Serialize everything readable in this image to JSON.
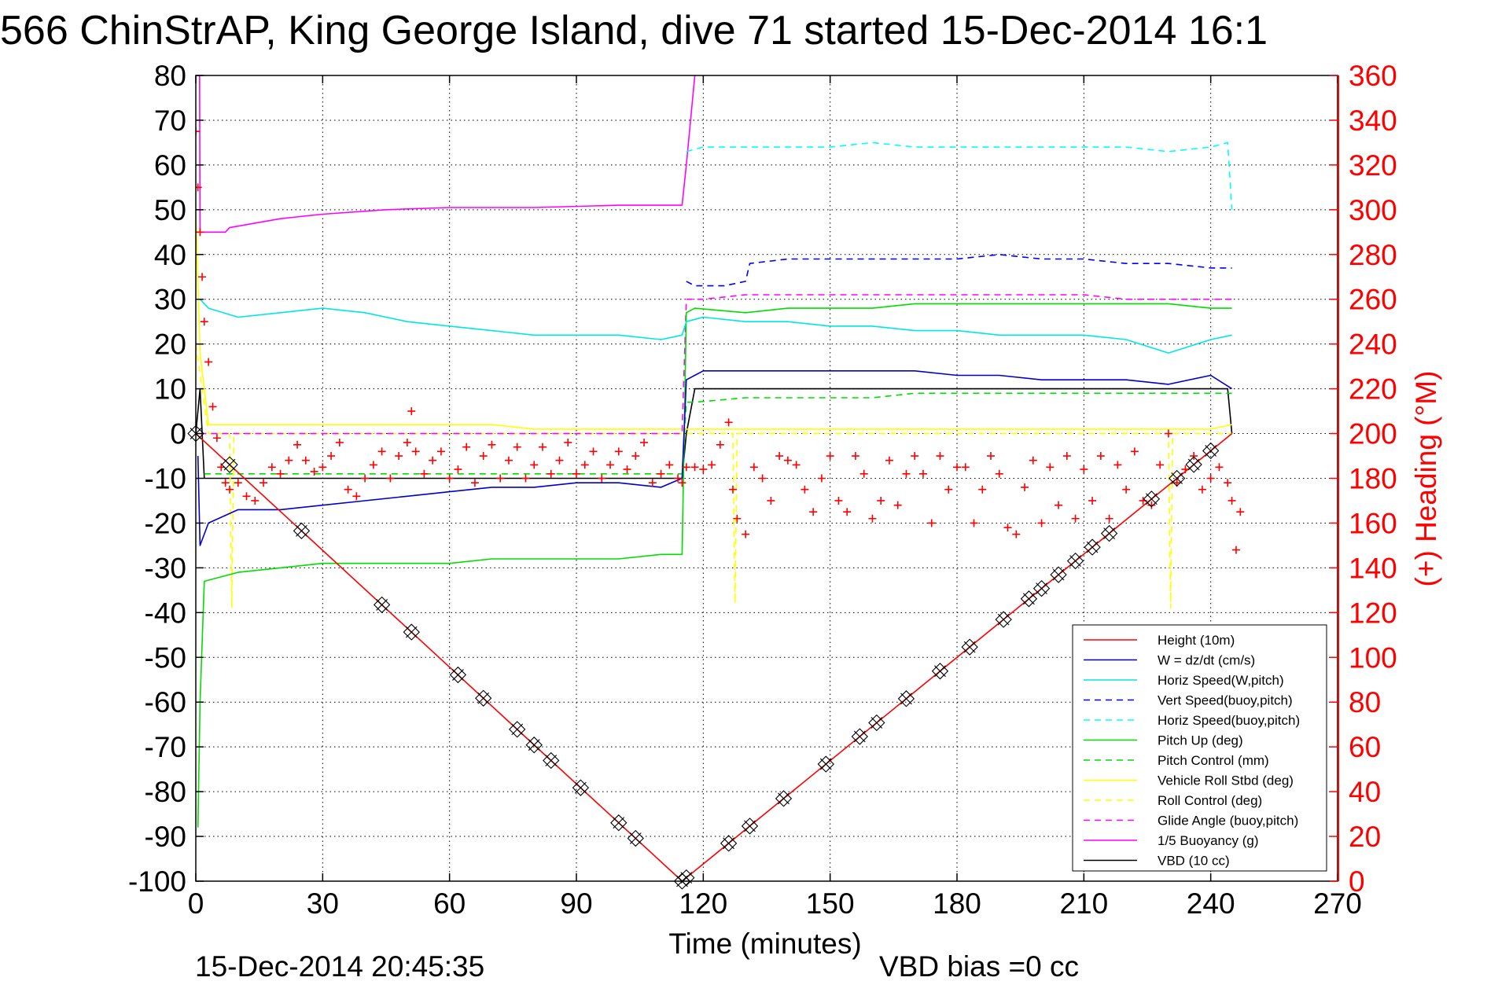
{
  "chart_data": {
    "type": "line",
    "title": "566 ChinStrAP, King George Island, dive 71 started 15-Dec-2014 16:1",
    "xlabel": "Time (minutes)",
    "ylabel_right": "(+) Heading (°M)",
    "footer_left": "15-Dec-2014 20:45:35",
    "footer_right": "VBD bias =0 cc",
    "xlim": [
      0,
      270
    ],
    "ylim": [
      -100,
      80
    ],
    "ylim_right": [
      0,
      360
    ],
    "x_ticks": [
      "0",
      "30",
      "60",
      "90",
      "120",
      "150",
      "180",
      "210",
      "240",
      "270"
    ],
    "x_tick_values": [
      0,
      30,
      60,
      90,
      120,
      150,
      180,
      210,
      240,
      270
    ],
    "y_ticks": [
      "80",
      "70",
      "60",
      "50",
      "40",
      "30",
      "20",
      "10",
      "0",
      "-10",
      "-20",
      "-30",
      "-40",
      "-50",
      "-60",
      "-70",
      "-80",
      "-90",
      "-100"
    ],
    "y_tick_values": [
      80,
      70,
      60,
      50,
      40,
      30,
      20,
      10,
      0,
      -10,
      -20,
      -30,
      -40,
      -50,
      -60,
      -70,
      -80,
      -90,
      -100
    ],
    "y_ticks_right": [
      "360",
      "340",
      "320",
      "300",
      "280",
      "260",
      "240",
      "220",
      "200",
      "180",
      "160",
      "140",
      "120",
      "100",
      "80",
      "60",
      "40",
      "20",
      "0"
    ],
    "y_tick_values_right": [
      360,
      340,
      320,
      300,
      280,
      260,
      240,
      220,
      200,
      180,
      160,
      140,
      120,
      100,
      80,
      60,
      40,
      20,
      0
    ],
    "grid": true,
    "legend_position": "bottom-right",
    "colors": {
      "height": "#ff0000",
      "w": "#0000cc",
      "horiz_speed": "#00e5e5",
      "vert_speed_buoy": "#0000ff",
      "horiz_speed_buoy": "#00ffff",
      "pitch_up": "#00dd00",
      "pitch_control": "#00dd00",
      "vehicle_roll": "#ffff00",
      "roll_control": "#ffff00",
      "glide_angle": "#ff00ff",
      "buoyancy": "#ff00ff",
      "vbd": "#000000",
      "heading": "#ff0000",
      "right_axis": "#ff0000"
    },
    "series": [
      {
        "name": "Height (10m)",
        "style": "solid",
        "x": [
          0,
          115,
          245
        ],
        "y": [
          0,
          -100,
          0
        ]
      },
      {
        "name": "W = dz/dt (cm/s)",
        "style": "solid",
        "x": [
          0.5,
          1,
          3,
          10,
          20,
          30,
          40,
          50,
          60,
          70,
          80,
          90,
          100,
          110,
          115,
          116,
          120,
          130,
          140,
          150,
          160,
          170,
          180,
          190,
          200,
          210,
          220,
          230,
          240,
          245
        ],
        "y": [
          -5,
          -25,
          -20,
          -17,
          -17,
          -16,
          -15,
          -14,
          -13,
          -12,
          -12,
          -11,
          -11,
          -12,
          -10,
          12,
          14,
          14,
          14,
          14,
          14,
          14,
          13,
          13,
          12,
          12,
          12,
          11,
          13,
          10
        ]
      },
      {
        "name": "Horiz Speed(W,pitch)",
        "style": "solid",
        "x": [
          1,
          3,
          10,
          20,
          30,
          40,
          50,
          60,
          70,
          80,
          90,
          100,
          110,
          115,
          116,
          120,
          130,
          140,
          150,
          160,
          170,
          180,
          190,
          200,
          210,
          220,
          230,
          240,
          245
        ],
        "y": [
          30,
          28,
          26,
          27,
          28,
          27,
          25,
          24,
          23,
          22,
          22,
          22,
          21,
          22,
          25,
          26,
          25,
          25,
          24,
          24,
          23,
          23,
          22,
          22,
          22,
          21,
          18,
          21,
          22
        ]
      },
      {
        "name": "Vert Speed(buoy,pitch)",
        "style": "dashed",
        "x": [
          116,
          118,
          125,
          130,
          131,
          140,
          150,
          160,
          170,
          180,
          190,
          200,
          210,
          220,
          230,
          240,
          245
        ],
        "y": [
          34,
          33,
          33,
          34,
          38,
          39,
          39,
          39,
          39,
          39,
          40,
          39,
          39,
          38,
          38,
          37,
          37
        ]
      },
      {
        "name": "Horiz Speed(buoy,pitch)",
        "style": "dashed",
        "x": [
          116,
          120,
          130,
          140,
          150,
          160,
          170,
          180,
          190,
          200,
          210,
          220,
          230,
          240,
          244,
          245
        ],
        "y": [
          63,
          64,
          64,
          64,
          64,
          65,
          64,
          64,
          64,
          64,
          64,
          64,
          63,
          64,
          65,
          50
        ]
      },
      {
        "name": "Pitch Up (deg)",
        "style": "solid",
        "x": [
          0.5,
          1,
          2,
          10,
          20,
          30,
          40,
          50,
          60,
          70,
          80,
          90,
          100,
          110,
          115,
          116,
          118,
          130,
          140,
          150,
          160,
          170,
          180,
          190,
          200,
          210,
          220,
          230,
          240,
          245
        ],
        "y": [
          -88,
          -60,
          -33,
          -31,
          -30,
          -29,
          -29,
          -29,
          -29,
          -28,
          -28,
          -28,
          -28,
          -27,
          -27,
          27,
          28,
          27,
          28,
          28,
          28,
          29,
          29,
          29,
          29,
          29,
          29,
          29,
          28,
          28
        ]
      },
      {
        "name": "Pitch Control (mm)",
        "style": "dashed",
        "x": [
          2,
          10,
          20,
          30,
          40,
          50,
          60,
          70,
          80,
          90,
          100,
          110,
          115,
          116,
          118,
          130,
          140,
          150,
          160,
          170,
          180,
          190,
          200,
          210,
          220,
          230,
          240,
          245
        ],
        "y": [
          -9,
          -9,
          -9,
          -9,
          -9,
          -9,
          -9,
          -9,
          -9,
          -9,
          -9,
          -9,
          -9,
          7,
          7,
          8,
          8,
          8,
          8,
          9,
          9,
          9,
          9,
          9,
          9,
          9,
          9,
          9
        ]
      },
      {
        "name": "Vehicle Roll Stbd (deg)",
        "style": "solid",
        "x": [
          0,
          1,
          3,
          10,
          20,
          30,
          40,
          50,
          60,
          70,
          80,
          90,
          100,
          110,
          115,
          116,
          120,
          130,
          140,
          150,
          160,
          170,
          180,
          190,
          200,
          210,
          220,
          230,
          240,
          245
        ],
        "y": [
          50,
          18,
          2,
          2,
          2,
          2,
          2,
          2,
          2,
          2,
          1,
          1,
          1,
          1,
          1,
          1,
          1,
          1,
          1,
          1,
          1,
          1,
          1,
          1,
          1,
          1,
          1,
          1,
          1,
          2
        ]
      },
      {
        "name": "Roll Control (deg)",
        "style": "dashed",
        "x": [
          0,
          3,
          8,
          8.5,
          9,
          30,
          60,
          90,
          115,
          116,
          127,
          127.5,
          128,
          150,
          180,
          210,
          230,
          230.5,
          231,
          245
        ],
        "y": [
          20,
          0,
          0,
          -39,
          0,
          0,
          0,
          0,
          0,
          0,
          0,
          -38,
          0,
          0,
          0,
          0,
          0,
          -39,
          0,
          0
        ]
      },
      {
        "name": "Glide Angle (buoy,pitch)",
        "style": "dashed",
        "x": [
          1,
          10,
          30,
          60,
          90,
          115,
          116,
          120,
          130,
          140,
          150,
          160,
          170,
          180,
          190,
          200,
          210,
          220,
          230,
          240,
          245
        ],
        "y": [
          0,
          0,
          0,
          0,
          0,
          0,
          30,
          30,
          31,
          31,
          31,
          31,
          31,
          31,
          31,
          31,
          31,
          30,
          30,
          30,
          30
        ]
      },
      {
        "name": "1/5 Buoyancy (g)",
        "style": "solid",
        "x": [
          0,
          0.9,
          1,
          7,
          8,
          20,
          30,
          45,
          60,
          80,
          100,
          115,
          116,
          117,
          118
        ],
        "y": [
          80,
          80,
          45,
          45,
          46,
          48,
          49,
          50,
          50.5,
          50.5,
          51,
          51,
          60,
          70,
          80
        ]
      },
      {
        "name": "VBD (10 cc)",
        "style": "solid",
        "x": [
          0,
          1,
          2,
          10,
          20,
          30,
          40,
          50,
          60,
          70,
          80,
          90,
          100,
          110,
          115,
          116,
          118,
          120,
          130,
          140,
          150,
          160,
          170,
          180,
          190,
          200,
          210,
          220,
          230,
          240,
          244,
          245
        ],
        "y": [
          0,
          10,
          -10,
          -10,
          -10,
          -10,
          -10,
          -10,
          -10,
          -10,
          -10,
          -10,
          -10,
          -10,
          -10,
          0,
          10,
          10,
          10,
          10,
          10,
          10,
          10,
          10,
          10,
          10,
          10,
          10,
          10,
          10,
          10,
          0
        ]
      }
    ],
    "heading_series": {
      "axis": "right",
      "marker": "+",
      "x": [
        0,
        0.5,
        1,
        1.5,
        2,
        3,
        4,
        5,
        6,
        7,
        8,
        10,
        12,
        14,
        16,
        18,
        20,
        22,
        24,
        26,
        28,
        30,
        32,
        34,
        36,
        38,
        40,
        42,
        44,
        46,
        48,
        50,
        51,
        52,
        54,
        56,
        58,
        60,
        62,
        64,
        66,
        68,
        70,
        72,
        74,
        76,
        78,
        80,
        82,
        84,
        86,
        88,
        90,
        92,
        94,
        96,
        98,
        100,
        102,
        104,
        106,
        108,
        110,
        112,
        114,
        115,
        116,
        118,
        120,
        122,
        124,
        126,
        127,
        128,
        130,
        132,
        134,
        136,
        138,
        140,
        142,
        144,
        146,
        148,
        150,
        152,
        154,
        156,
        158,
        160,
        162,
        164,
        166,
        168,
        170,
        172,
        174,
        176,
        178,
        180,
        182,
        184,
        186,
        188,
        190,
        192,
        194,
        196,
        198,
        200,
        202,
        204,
        206,
        208,
        210,
        212,
        214,
        216,
        218,
        220,
        222,
        224,
        226,
        228,
        230,
        232,
        234,
        236,
        238,
        240,
        242,
        244,
        245,
        246,
        247
      ],
      "y": [
        335,
        310,
        290,
        270,
        250,
        232,
        212,
        198,
        185,
        178,
        175,
        178,
        172,
        170,
        178,
        185,
        182,
        188,
        195,
        188,
        183,
        185,
        190,
        196,
        175,
        172,
        180,
        186,
        192,
        180,
        190,
        196,
        210,
        192,
        182,
        188,
        192,
        180,
        184,
        194,
        178,
        190,
        195,
        180,
        188,
        194,
        180,
        186,
        194,
        182,
        188,
        196,
        182,
        186,
        192,
        180,
        186,
        192,
        184,
        190,
        196,
        178,
        182,
        186,
        180,
        178,
        185,
        185,
        184,
        186,
        195,
        205,
        175,
        162,
        155,
        185,
        180,
        170,
        190,
        188,
        186,
        175,
        165,
        180,
        190,
        170,
        165,
        190,
        182,
        162,
        170,
        188,
        168,
        182,
        190,
        182,
        160,
        190,
        175,
        185,
        185,
        160,
        175,
        190,
        182,
        158,
        155,
        176,
        188,
        160,
        185,
        168,
        190,
        162,
        184,
        170,
        190,
        162,
        186,
        175,
        192,
        170,
        168,
        186,
        200,
        178,
        184,
        190,
        175,
        180,
        185,
        178,
        170,
        148,
        165
      ]
    },
    "height_markers": {
      "marker": "box-x",
      "x": [
        0,
        8,
        25,
        44,
        51,
        62,
        68,
        76,
        80,
        84,
        91,
        100,
        104,
        115,
        116,
        126,
        131,
        139,
        149,
        157,
        161,
        168,
        176,
        183,
        191,
        197,
        200,
        204,
        208,
        212,
        216,
        226,
        232,
        236,
        240
      ]
    }
  },
  "legend": {
    "items": [
      "Height (10m)",
      "W = dz/dt (cm/s)",
      "Horiz Speed(W,pitch)",
      "Vert Speed(buoy,pitch)",
      "Horiz Speed(buoy,pitch)",
      "Pitch Up (deg)",
      "Pitch Control (mm)",
      "Vehicle Roll Stbd (deg)",
      "Roll Control (deg)",
      "Glide Angle (buoy,pitch)",
      "1/5 Buoyancy (g)",
      "VBD (10 cc)"
    ]
  }
}
